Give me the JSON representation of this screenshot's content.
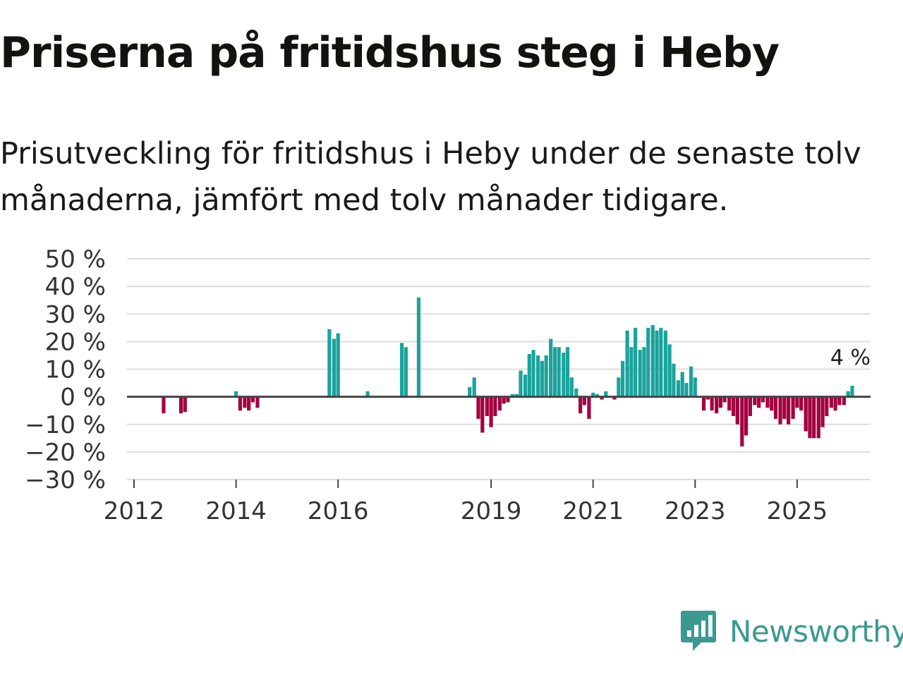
{
  "header": {
    "title": "Priserna på fritidshus steg i Heby",
    "subtitle": "Prisutveckling för fritidshus i Heby under de senaste tolv månaderna, jämfört med tolv månader tidigare."
  },
  "brand": {
    "name": "Newsworthy",
    "color": "#3a9a8f"
  },
  "colors": {
    "positive": "#1aa39c",
    "negative": "#a3003f",
    "grid": "#dddddd",
    "zero": "#444444"
  },
  "chart_data": {
    "type": "bar",
    "title": "Priserna på fritidshus steg i Heby",
    "subtitle": "Prisutveckling för fritidshus i Heby under de senaste tolv månaderna, jämfört med tolv månader tidigare.",
    "xlabel": "",
    "ylabel": "",
    "ylim": [
      -30,
      50
    ],
    "y_ticks": [
      50,
      40,
      30,
      20,
      10,
      0,
      -10,
      -20,
      -30
    ],
    "y_tick_labels": [
      "50 %",
      "40 %",
      "30 %",
      "20 %",
      "10 %",
      "0 %",
      "−10 %",
      "−20 %",
      "−30 %"
    ],
    "x_ticks": [
      2012,
      2014,
      2016,
      2019,
      2021,
      2023,
      2025
    ],
    "x_tick_labels": [
      "2012",
      "2014",
      "2016",
      "2019",
      "2021",
      "2023",
      "2025"
    ],
    "x_start": "2012-01",
    "annotation": {
      "text": "4 %",
      "date": "2025-11",
      "value": 4
    },
    "series": [
      {
        "name": "Prisutveckling",
        "values": [
          [
            2012.58,
            -6
          ],
          [
            2012.92,
            -6
          ],
          [
            2013.0,
            -5.5
          ],
          [
            2014.0,
            2
          ],
          [
            2014.08,
            -5
          ],
          [
            2014.17,
            -4
          ],
          [
            2014.25,
            -5
          ],
          [
            2014.33,
            -2
          ],
          [
            2014.42,
            -4
          ],
          [
            2015.83,
            24.5
          ],
          [
            2015.92,
            21
          ],
          [
            2016.0,
            23
          ],
          [
            2016.58,
            2
          ],
          [
            2017.25,
            19.5
          ],
          [
            2017.33,
            18
          ],
          [
            2017.58,
            36
          ],
          [
            2018.58,
            3.5
          ],
          [
            2018.67,
            7
          ],
          [
            2018.75,
            -8
          ],
          [
            2018.83,
            -13
          ],
          [
            2018.92,
            -7
          ],
          [
            2019.0,
            -11
          ],
          [
            2019.08,
            -7
          ],
          [
            2019.17,
            -5
          ],
          [
            2019.25,
            -2.5
          ],
          [
            2019.33,
            -2
          ],
          [
            2019.42,
            1
          ],
          [
            2019.5,
            1
          ],
          [
            2019.58,
            9.5
          ],
          [
            2019.67,
            8
          ],
          [
            2019.75,
            15.5
          ],
          [
            2019.83,
            17
          ],
          [
            2019.92,
            15
          ],
          [
            2020.0,
            13
          ],
          [
            2020.08,
            15
          ],
          [
            2020.17,
            21
          ],
          [
            2020.25,
            18
          ],
          [
            2020.33,
            18
          ],
          [
            2020.42,
            16
          ],
          [
            2020.5,
            18
          ],
          [
            2020.58,
            7
          ],
          [
            2020.67,
            3
          ],
          [
            2020.75,
            -6
          ],
          [
            2020.83,
            -3
          ],
          [
            2020.92,
            -8
          ],
          [
            2021.0,
            1.5
          ],
          [
            2021.08,
            1
          ],
          [
            2021.17,
            -1
          ],
          [
            2021.25,
            2
          ],
          [
            2021.42,
            -1
          ],
          [
            2021.5,
            7
          ],
          [
            2021.58,
            13
          ],
          [
            2021.67,
            24
          ],
          [
            2021.75,
            18
          ],
          [
            2021.83,
            25
          ],
          [
            2021.92,
            17
          ],
          [
            2022.0,
            18
          ],
          [
            2022.08,
            25
          ],
          [
            2022.17,
            26
          ],
          [
            2022.25,
            24
          ],
          [
            2022.33,
            25
          ],
          [
            2022.42,
            24
          ],
          [
            2022.5,
            19
          ],
          [
            2022.58,
            12
          ],
          [
            2022.67,
            6
          ],
          [
            2022.75,
            9
          ],
          [
            2022.83,
            5
          ],
          [
            2022.92,
            11
          ],
          [
            2023.0,
            7
          ],
          [
            2023.17,
            -5
          ],
          [
            2023.25,
            -1
          ],
          [
            2023.33,
            -5
          ],
          [
            2023.42,
            -6
          ],
          [
            2023.5,
            -4
          ],
          [
            2023.58,
            -2
          ],
          [
            2023.67,
            -5
          ],
          [
            2023.75,
            -7
          ],
          [
            2023.83,
            -10
          ],
          [
            2023.92,
            -18
          ],
          [
            2024.0,
            -14
          ],
          [
            2024.08,
            -7
          ],
          [
            2024.17,
            -3
          ],
          [
            2024.25,
            -4
          ],
          [
            2024.33,
            -2
          ],
          [
            2024.42,
            -4
          ],
          [
            2024.5,
            -5
          ],
          [
            2024.58,
            -8
          ],
          [
            2024.67,
            -10
          ],
          [
            2024.75,
            -8
          ],
          [
            2024.83,
            -10
          ],
          [
            2024.92,
            -8
          ],
          [
            2025.0,
            -4
          ],
          [
            2025.08,
            -5
          ],
          [
            2025.17,
            -12.5
          ],
          [
            2025.25,
            -15
          ],
          [
            2025.33,
            -15
          ],
          [
            2025.42,
            -15
          ],
          [
            2025.5,
            -11
          ],
          [
            2025.58,
            -7
          ],
          [
            2025.67,
            -4
          ],
          [
            2025.75,
            -5
          ],
          [
            2025.83,
            -3
          ],
          [
            2025.92,
            -3
          ],
          [
            2026.0,
            2
          ],
          [
            2026.08,
            4
          ]
        ]
      }
    ]
  }
}
